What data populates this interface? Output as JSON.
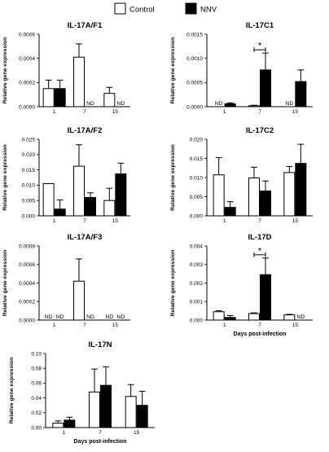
{
  "legend": [
    {
      "label": "Control",
      "color": "#ffffff"
    },
    {
      "label": "NNV",
      "color": "#000000"
    }
  ],
  "colors": {
    "control": "#ffffff",
    "nnv": "#000000",
    "axis": "#000000"
  },
  "chart_data": [
    {
      "type": "bar",
      "title": "IL-17A/F1",
      "ylabel": "Relative gene expression",
      "xlabel": "",
      "categories": [
        "1",
        "7",
        "15"
      ],
      "ylim": [
        0,
        0.0006
      ],
      "yticks": [
        "0.0000",
        "0.0002",
        "0.0004",
        "0.0006"
      ],
      "series": [
        {
          "name": "Control",
          "values": [
            0.00015,
            0.00041,
            0.00011
          ],
          "errors": [
            7e-05,
            0.00011,
            5e-05
          ]
        },
        {
          "name": "NNV",
          "values": [
            0.00015,
            null,
            null
          ],
          "errors": [
            7e-05,
            null,
            null
          ]
        }
      ],
      "nd_labels": [
        "ND",
        "ND"
      ],
      "nd_positions": [
        [
          1,
          1
        ],
        [
          1,
          2
        ]
      ],
      "significance": []
    },
    {
      "type": "bar",
      "title": "IL-17C1",
      "ylabel": "Relative gene expression",
      "xlabel": "",
      "categories": [
        "1",
        "7",
        "15"
      ],
      "ylim": [
        0,
        0.0015
      ],
      "yticks": [
        "0.0000",
        "0.0005",
        "0.0010",
        "0.0015"
      ],
      "series": [
        {
          "name": "Control",
          "values": [
            null,
            2e-05,
            null
          ],
          "errors": [
            null,
            1e-05,
            null
          ]
        },
        {
          "name": "NNV",
          "values": [
            6e-05,
            0.00076,
            0.00052
          ],
          "errors": [
            2e-05,
            0.00035,
            0.00024
          ]
        }
      ],
      "nd_labels": [
        "ND",
        "ND"
      ],
      "nd_positions": [
        [
          0,
          0
        ],
        [
          0,
          2
        ]
      ],
      "significance": [
        {
          "cat": 1,
          "label": "*"
        }
      ]
    },
    {
      "type": "bar",
      "title": "IL-17A/F2",
      "ylabel": "Relative gene expression",
      "xlabel": "",
      "categories": [
        "1",
        "7",
        "15"
      ],
      "ylim": [
        0,
        0.025
      ],
      "yticks": [
        "0.000",
        "0.005",
        "0.010",
        "0.015",
        "0.020",
        "0.025"
      ],
      "series": [
        {
          "name": "Control",
          "values": [
            0.0105,
            0.0162,
            0.005
          ],
          "errors": [
            0,
            0.007,
            0.004
          ]
        },
        {
          "name": "NNV",
          "values": [
            0.0022,
            0.006,
            0.0137
          ],
          "errors": [
            0.003,
            0.0015,
            0.0035
          ]
        }
      ],
      "nd_labels": [],
      "nd_positions": [],
      "significance": []
    },
    {
      "type": "bar",
      "title": "IL-17C2",
      "ylabel": "Relative gene expression",
      "xlabel": "",
      "categories": [
        "1",
        "7",
        "15"
      ],
      "ylim": [
        0,
        0.02
      ],
      "yticks": [
        "0.000",
        "0.005",
        "0.010",
        "0.015",
        "0.020"
      ],
      "series": [
        {
          "name": "Control",
          "values": [
            0.0107,
            0.0099,
            0.0113
          ],
          "errors": [
            0.0045,
            0.0028,
            0.0016
          ]
        },
        {
          "name": "NNV",
          "values": [
            0.0022,
            0.0065,
            0.0137
          ],
          "errors": [
            0.0015,
            0.0026,
            0.005
          ]
        }
      ],
      "nd_labels": [],
      "nd_positions": [],
      "significance": []
    },
    {
      "type": "bar",
      "title": "IL-17A/F3",
      "ylabel": "Relative gene expression",
      "xlabel": "",
      "categories": [
        "1",
        "7",
        "15"
      ],
      "ylim": [
        0,
        0.0008
      ],
      "yticks": [
        "0.0000",
        "0.0002",
        "0.0004",
        "0.0006",
        "0.0008"
      ],
      "series": [
        {
          "name": "Control",
          "values": [
            null,
            0.00042,
            null
          ],
          "errors": [
            null,
            0.00024,
            null
          ]
        },
        {
          "name": "NNV",
          "values": [
            null,
            null,
            null
          ],
          "errors": [
            null,
            null,
            null
          ]
        }
      ],
      "nd_labels": [
        "ND",
        "ND",
        "ND",
        "ND",
        "ND"
      ],
      "nd_positions": [
        [
          0,
          0
        ],
        [
          1,
          0
        ],
        [
          1,
          1
        ],
        [
          0,
          2
        ],
        [
          1,
          2
        ]
      ],
      "significance": []
    },
    {
      "type": "bar",
      "title": "IL-17D",
      "ylabel": "Relative gene expression",
      "xlabel": "Days post-infection",
      "categories": [
        "1",
        "7",
        "15"
      ],
      "ylim": [
        0,
        0.004
      ],
      "yticks": [
        "0.000",
        "0.001",
        "0.002",
        "0.003",
        "0.004"
      ],
      "series": [
        {
          "name": "Control",
          "values": [
            0.00045,
            0.00035,
            0.00028
          ],
          "errors": [
            5e-05,
            4e-05,
            3e-05
          ]
        },
        {
          "name": "NNV",
          "values": [
            0.00014,
            0.00245,
            null
          ],
          "errors": [
            0.0001,
            0.0009,
            null
          ]
        }
      ],
      "nd_labels": [
        "ND"
      ],
      "nd_positions": [
        [
          1,
          2
        ]
      ],
      "significance": [
        {
          "cat": 1,
          "label": "*"
        }
      ]
    },
    {
      "type": "bar",
      "title": "IL-17N",
      "ylabel": "Relative gene expression",
      "xlabel": "Days post-infection",
      "categories": [
        "1",
        "7",
        "15"
      ],
      "ylim": [
        0,
        0.1
      ],
      "yticks": [
        "0.00",
        "0.02",
        "0.04",
        "0.06",
        "0.08",
        "0.10"
      ],
      "series": [
        {
          "name": "Control",
          "values": [
            0.006,
            0.048,
            0.042
          ],
          "errors": [
            0.003,
            0.031,
            0.016
          ]
        },
        {
          "name": "NNV",
          "values": [
            0.01,
            0.057,
            0.03
          ],
          "errors": [
            0.004,
            0.025,
            0.019
          ]
        }
      ],
      "nd_labels": [],
      "nd_positions": [],
      "significance": []
    }
  ]
}
